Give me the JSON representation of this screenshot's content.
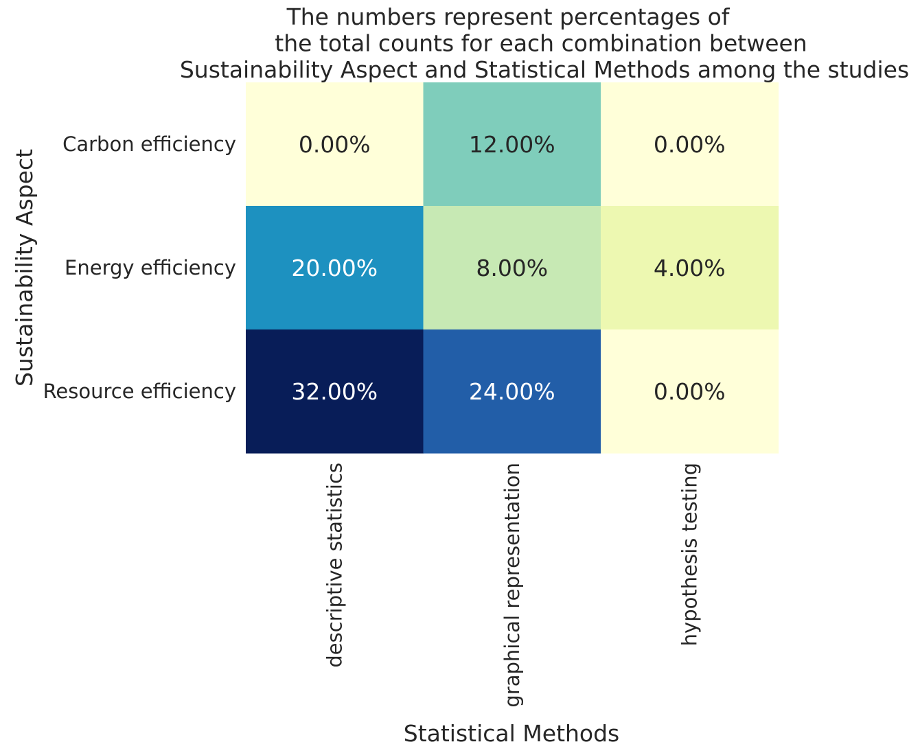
{
  "chart_data": {
    "type": "heatmap",
    "title": "The numbers represent percentages of\nthe total counts for each combination between\nSustainability Aspect and Statistical Methods among the studies",
    "xlabel": "Statistical Methods",
    "ylabel": "Sustainability Aspect",
    "x_categories": [
      "descriptive statistics",
      "graphical representation",
      "hypothesis testing"
    ],
    "y_categories": [
      "Carbon efficiency",
      "Energy efficiency",
      "Resource efficiency"
    ],
    "values": [
      [
        0.0,
        12.0,
        0.0
      ],
      [
        20.0,
        8.0,
        4.0
      ],
      [
        32.0,
        24.0,
        0.0
      ]
    ],
    "value_labels": [
      [
        "0.00%",
        "12.00%",
        "0.00%"
      ],
      [
        "20.00%",
        "8.00%",
        "4.00%"
      ],
      [
        "32.00%",
        "24.00%",
        "0.00%"
      ]
    ],
    "colormap": "YlGnBu",
    "value_range": [
      0,
      32
    ],
    "colorbar": false,
    "grid": false
  }
}
